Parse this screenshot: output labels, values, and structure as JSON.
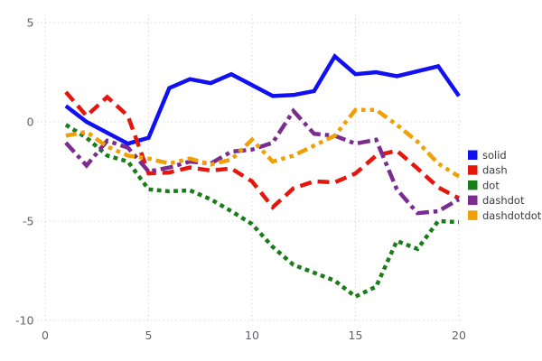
{
  "chart_data": {
    "type": "line",
    "title": "",
    "xlabel": "",
    "ylabel": "",
    "x": [
      1,
      2,
      3,
      4,
      5,
      6,
      7,
      8,
      9,
      10,
      11,
      12,
      13,
      14,
      15,
      16,
      17,
      18,
      19,
      20
    ],
    "series": [
      {
        "name": "solid",
        "color": "#1010f0",
        "dash": "solid",
        "values": [
          0.8,
          0.0,
          -0.55,
          -1.1,
          -0.8,
          1.7,
          2.15,
          1.95,
          2.4,
          1.85,
          1.3,
          1.35,
          1.55,
          3.3,
          2.4,
          2.5,
          2.3,
          2.55,
          2.8,
          1.3
        ]
      },
      {
        "name": "dash",
        "color": "#e5160e",
        "dash": "dash",
        "values": [
          1.5,
          0.3,
          1.25,
          0.3,
          -2.6,
          -2.55,
          -2.3,
          -2.45,
          -2.35,
          -3.0,
          -4.3,
          -3.35,
          -3.0,
          -3.05,
          -2.6,
          -1.7,
          -1.45,
          -2.35,
          -3.3,
          -3.85
        ]
      },
      {
        "name": "dot",
        "color": "#1a7d1a",
        "dash": "dot",
        "values": [
          -0.15,
          -0.8,
          -1.7,
          -2.0,
          -3.4,
          -3.5,
          -3.45,
          -3.9,
          -4.5,
          -5.15,
          -6.3,
          -7.2,
          -7.6,
          -8.0,
          -8.8,
          -8.3,
          -6.0,
          -6.4,
          -5.0,
          -5.05
        ]
      },
      {
        "name": "dashdot",
        "color": "#7b2d8f",
        "dash": "dashdot",
        "values": [
          -1.05,
          -2.2,
          -0.95,
          -1.3,
          -2.5,
          -2.3,
          -2.0,
          -2.1,
          -1.5,
          -1.4,
          -1.05,
          0.55,
          -0.6,
          -0.7,
          -1.1,
          -0.9,
          -3.4,
          -4.6,
          -4.5,
          -3.9
        ]
      },
      {
        "name": "dashdotdot",
        "color": "#f0a007",
        "dash": "dashdotdot",
        "values": [
          -0.7,
          -0.5,
          -1.25,
          -1.7,
          -1.85,
          -2.1,
          -1.85,
          -2.15,
          -1.9,
          -0.9,
          -2.0,
          -1.7,
          -1.2,
          -0.7,
          0.6,
          0.6,
          -0.15,
          -1.0,
          -2.1,
          -2.75
        ]
      }
    ],
    "x_ticks": [
      0,
      5,
      10,
      15,
      20
    ],
    "x_tick_labels": [
      "0",
      "5",
      "10",
      "15",
      "20"
    ],
    "y_ticks": [
      5,
      0,
      -5,
      -10
    ],
    "y_tick_labels": [
      "5",
      "0",
      "-5",
      "-10"
    ],
    "xlim": [
      0,
      20.2
    ],
    "ylim": [
      -10.4,
      5.35
    ],
    "grid": true,
    "legend_position": "right",
    "legend_labels": [
      "solid",
      "dash",
      "dot",
      "dashdot",
      "dashdotdot"
    ],
    "colors": {
      "background": "#ffffff",
      "grid": "#dadae3",
      "tick_label": "#63636e",
      "legend_text": "#3a3a3a"
    }
  }
}
